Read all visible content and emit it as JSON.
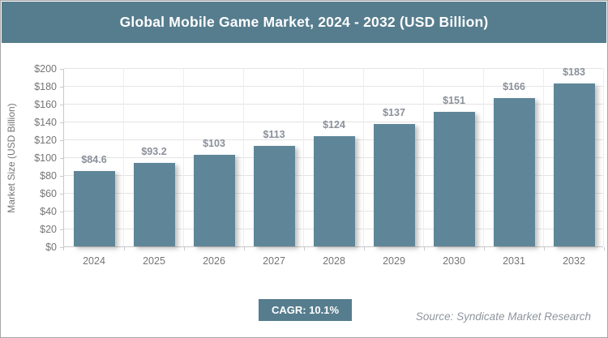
{
  "header": {
    "title": "Global Mobile Game Market, 2024 - 2032 (USD Billion)"
  },
  "chart_data": {
    "type": "bar",
    "title": "Global Mobile Game Market, 2024 - 2032 (USD Billion)",
    "categories": [
      "2024",
      "2025",
      "2026",
      "2027",
      "2028",
      "2029",
      "2030",
      "2031",
      "2032"
    ],
    "values": [
      84.6,
      93.2,
      103,
      113,
      124,
      137,
      151,
      166,
      183
    ],
    "bar_labels": [
      "$84.6",
      "$93.2",
      "$103",
      "$113",
      "$124",
      "$137",
      "$151",
      "$166",
      "$183"
    ],
    "xlabel": "",
    "ylabel": "Market Size (USD Billion)",
    "ylim": [
      0,
      200
    ],
    "ytick_step": 20,
    "ytick_prefix": "$",
    "grid": true,
    "legend": "none"
  },
  "footer": {
    "cagr_label": "CAGR: 10.1%",
    "source": "Source: Syndicate Market Research"
  },
  "colors": {
    "header_bg": "#567d8e",
    "bar": "#5f8698",
    "badge_bg": "#567d8e",
    "axis_text": "#757575",
    "bar_label_text": "#8a909a",
    "source_text": "#8e959d"
  }
}
